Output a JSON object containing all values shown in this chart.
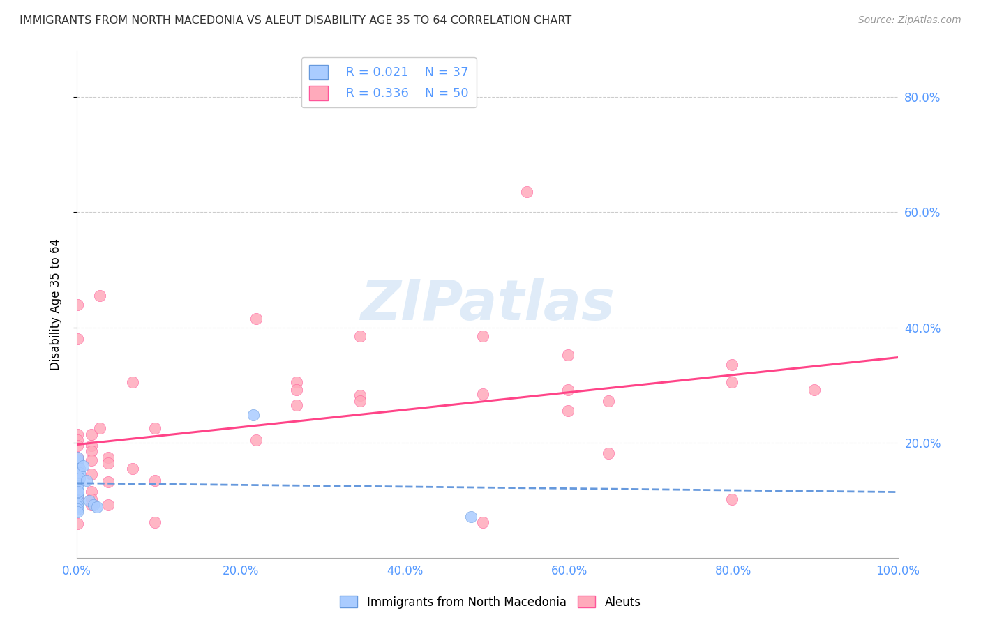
{
  "title": "IMMIGRANTS FROM NORTH MACEDONIA VS ALEUT DISABILITY AGE 35 TO 64 CORRELATION CHART",
  "source": "Source: ZipAtlas.com",
  "tick_color": "#5599ff",
  "ylabel": "Disability Age 35 to 64",
  "xlim": [
    0.0,
    1.0
  ],
  "ylim": [
    0.0,
    0.88
  ],
  "x_tick_vals": [
    0.0,
    0.2,
    0.4,
    0.6,
    0.8,
    1.0
  ],
  "x_tick_labels": [
    "0.0%",
    "20.0%",
    "40.0%",
    "60.0%",
    "80.0%",
    "100.0%"
  ],
  "y_tick_vals": [
    0.2,
    0.4,
    0.6,
    0.8
  ],
  "y_tick_labels": [
    "20.0%",
    "40.0%",
    "60.0%",
    "80.0%"
  ],
  "blue_R": "0.021",
  "blue_N": "37",
  "pink_R": "0.336",
  "pink_N": "50",
  "legend_label1": "Immigrants from North Macedonia",
  "legend_label2": "Aleuts",
  "watermark": "ZIPatlas",
  "blue_fill": "#aaccff",
  "pink_fill": "#ffaabb",
  "blue_edge": "#6699dd",
  "pink_edge": "#ff5599",
  "blue_line": "#6699dd",
  "pink_line": "#ff4488",
  "blue_dots": [
    [
      0.001,
      0.15
    ],
    [
      0.001,
      0.155
    ],
    [
      0.001,
      0.16
    ],
    [
      0.001,
      0.165
    ],
    [
      0.001,
      0.145
    ],
    [
      0.001,
      0.14
    ],
    [
      0.001,
      0.135
    ],
    [
      0.001,
      0.13
    ],
    [
      0.001,
      0.125
    ],
    [
      0.001,
      0.12
    ],
    [
      0.001,
      0.115
    ],
    [
      0.001,
      0.11
    ],
    [
      0.001,
      0.105
    ],
    [
      0.001,
      0.1
    ],
    [
      0.001,
      0.095
    ],
    [
      0.001,
      0.09
    ],
    [
      0.001,
      0.085
    ],
    [
      0.001,
      0.08
    ],
    [
      0.001,
      0.17
    ],
    [
      0.001,
      0.175
    ],
    [
      0.002,
      0.145
    ],
    [
      0.002,
      0.14
    ],
    [
      0.002,
      0.135
    ],
    [
      0.002,
      0.13
    ],
    [
      0.002,
      0.125
    ],
    [
      0.002,
      0.12
    ],
    [
      0.002,
      0.115
    ],
    [
      0.003,
      0.155
    ],
    [
      0.003,
      0.148
    ],
    [
      0.003,
      0.138
    ],
    [
      0.008,
      0.16
    ],
    [
      0.012,
      0.135
    ],
    [
      0.015,
      0.1
    ],
    [
      0.02,
      0.092
    ],
    [
      0.025,
      0.088
    ],
    [
      0.48,
      0.072
    ],
    [
      0.215,
      0.248
    ]
  ],
  "pink_dots": [
    [
      0.001,
      0.44
    ],
    [
      0.001,
      0.38
    ],
    [
      0.001,
      0.215
    ],
    [
      0.001,
      0.205
    ],
    [
      0.001,
      0.195
    ],
    [
      0.001,
      0.175
    ],
    [
      0.001,
      0.155
    ],
    [
      0.001,
      0.125
    ],
    [
      0.001,
      0.105
    ],
    [
      0.001,
      0.06
    ],
    [
      0.018,
      0.215
    ],
    [
      0.018,
      0.195
    ],
    [
      0.018,
      0.185
    ],
    [
      0.018,
      0.17
    ],
    [
      0.018,
      0.145
    ],
    [
      0.018,
      0.115
    ],
    [
      0.018,
      0.102
    ],
    [
      0.018,
      0.092
    ],
    [
      0.028,
      0.455
    ],
    [
      0.028,
      0.225
    ],
    [
      0.038,
      0.175
    ],
    [
      0.038,
      0.165
    ],
    [
      0.038,
      0.132
    ],
    [
      0.038,
      0.092
    ],
    [
      0.068,
      0.305
    ],
    [
      0.068,
      0.155
    ],
    [
      0.095,
      0.225
    ],
    [
      0.095,
      0.135
    ],
    [
      0.095,
      0.062
    ],
    [
      0.218,
      0.415
    ],
    [
      0.218,
      0.205
    ],
    [
      0.268,
      0.305
    ],
    [
      0.268,
      0.292
    ],
    [
      0.268,
      0.265
    ],
    [
      0.345,
      0.385
    ],
    [
      0.345,
      0.282
    ],
    [
      0.345,
      0.272
    ],
    [
      0.495,
      0.385
    ],
    [
      0.495,
      0.285
    ],
    [
      0.495,
      0.062
    ],
    [
      0.548,
      0.635
    ],
    [
      0.598,
      0.352
    ],
    [
      0.598,
      0.292
    ],
    [
      0.598,
      0.255
    ],
    [
      0.648,
      0.272
    ],
    [
      0.648,
      0.182
    ],
    [
      0.798,
      0.335
    ],
    [
      0.798,
      0.305
    ],
    [
      0.798,
      0.102
    ],
    [
      0.898,
      0.292
    ]
  ]
}
